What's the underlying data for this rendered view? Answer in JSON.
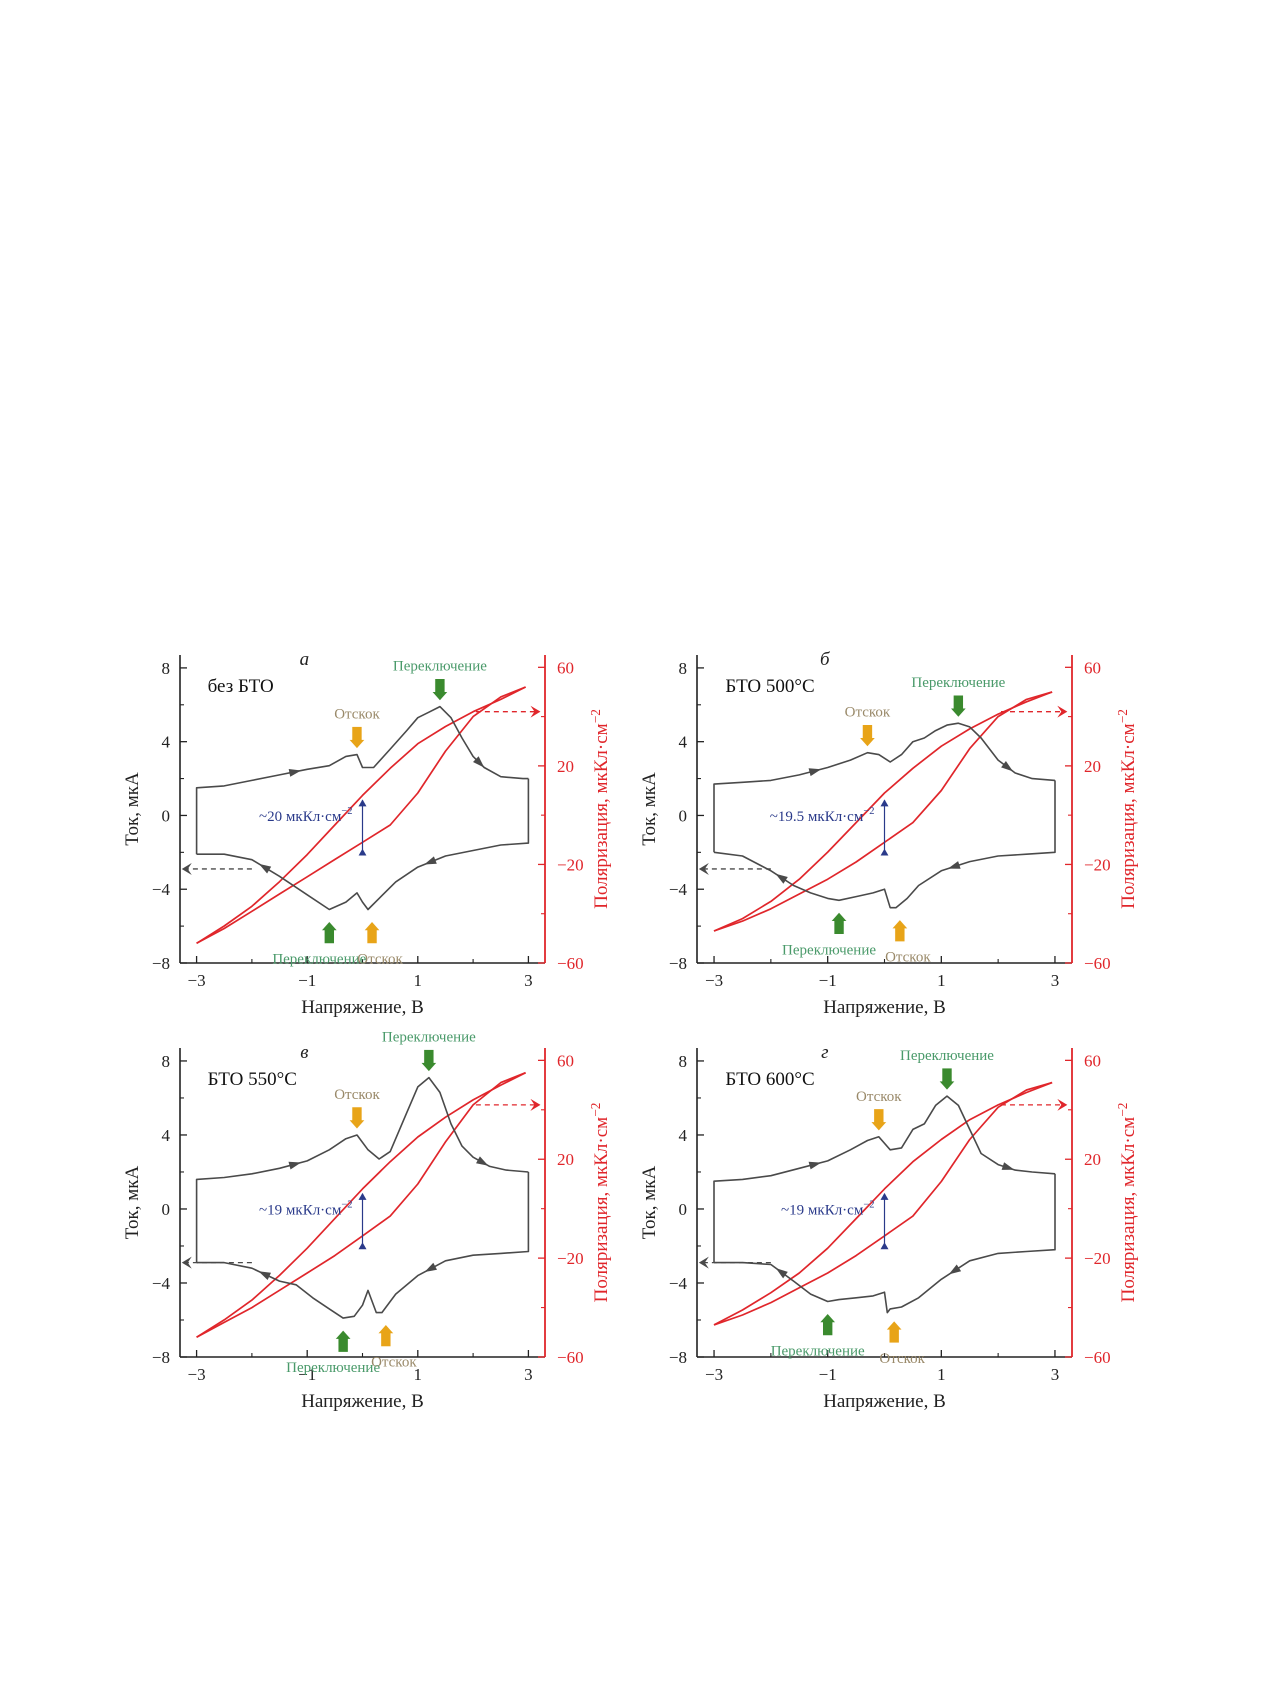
{
  "colors": {
    "current": "#4a4a4a",
    "polarization": "#e0262b",
    "switching": "#3a8a2e",
    "switching_text": "#4a9a6a",
    "bounce": "#e8a418",
    "bounce_text": "#9a8a6a",
    "delta": "#2a3a8a"
  },
  "chart_data": [
    {
      "type": "line",
      "panel_letter": "а",
      "sample_label": "без БТО",
      "xlabel": "Напряжение, В",
      "ylabel_left": "Ток, мкА",
      "ylabel_right": "Поляризация, мкКл·см",
      "ylabel_right_exp": "−2",
      "xlim": [
        -3.3,
        3.3
      ],
      "ylim_left": [
        -8,
        8.7
      ],
      "ylim_right": [
        -60,
        65
      ],
      "x_ticks": [
        "−3",
        "−1",
        "1",
        "3"
      ],
      "y_ticks_left": [
        "8",
        "4",
        "0",
        "−4",
        "−8"
      ],
      "y_ticks_right": [
        "60",
        "20",
        "−20",
        "−60"
      ],
      "delta_label": "~20 мкКл·см",
      "delta_exp": "−2",
      "switching_label_top": "Переключение",
      "bounce_label_top": "Отскок",
      "switching_label_bottom": "Переключение",
      "bounce_label_bottom": "Отскок",
      "series": [
        {
          "name": "current_forward",
          "x": [
            -3.0,
            -3.0,
            -2.5,
            -2.0,
            -1.5,
            -1.0,
            -0.6,
            -0.3,
            -0.1,
            0.0,
            0.2,
            0.5,
            0.8,
            1.0,
            1.2,
            1.4,
            1.6,
            1.8,
            2.0,
            2.2,
            2.5,
            2.9,
            3.0
          ],
          "y": [
            -2.1,
            1.5,
            1.6,
            1.9,
            2.2,
            2.5,
            2.7,
            3.2,
            3.3,
            2.6,
            2.6,
            3.6,
            4.6,
            5.3,
            5.6,
            5.9,
            5.3,
            4.2,
            3.2,
            2.6,
            2.1,
            2.0,
            2.0
          ]
        },
        {
          "name": "current_reverse",
          "x": [
            3.0,
            3.0,
            2.5,
            2.0,
            1.5,
            1.0,
            0.6,
            0.3,
            0.1,
            0.0,
            -0.1,
            -0.3,
            -0.6,
            -1.0,
            -1.5,
            -2.0,
            -2.5,
            -3.0
          ],
          "y": [
            2.0,
            -1.5,
            -1.6,
            -1.9,
            -2.2,
            -2.8,
            -3.6,
            -4.5,
            -5.1,
            -4.7,
            -4.2,
            -4.7,
            -5.1,
            -4.3,
            -3.3,
            -2.4,
            -2.1,
            -2.1
          ]
        },
        {
          "name": "polarization_upper",
          "x": [
            -3.0,
            -2.5,
            -2.0,
            -1.5,
            -1.0,
            -0.5,
            0.0,
            0.5,
            1.0,
            1.5,
            2.0,
            2.5,
            2.95
          ],
          "y": [
            -52,
            -45,
            -37,
            -27,
            -16,
            -4,
            8,
            19,
            29,
            36,
            42,
            47,
            52
          ]
        },
        {
          "name": "polarization_lower",
          "x": [
            2.95,
            2.5,
            2.0,
            1.5,
            1.0,
            0.5,
            0.0,
            -0.5,
            -1.0,
            -1.5,
            -2.0,
            -2.5,
            -3.0
          ],
          "y": [
            52,
            48,
            40,
            26,
            9,
            -4,
            -11,
            -18,
            -25,
            -32,
            -39,
            -46,
            -52
          ]
        }
      ]
    },
    {
      "type": "line",
      "panel_letter": "б",
      "sample_label": "БТО 500°C",
      "xlabel": "Напряжение, В",
      "ylabel_left": "Ток, мкА",
      "ylabel_right": "Поляризация, мкКл·см",
      "ylabel_right_exp": "−2",
      "xlim": [
        -3.3,
        3.3
      ],
      "ylim_left": [
        -8,
        8.7
      ],
      "ylim_right": [
        -60,
        65
      ],
      "x_ticks": [
        "−3",
        "−1",
        "1",
        "3"
      ],
      "y_ticks_left": [
        "8",
        "4",
        "0",
        "−4",
        "−8"
      ],
      "y_ticks_right": [
        "60",
        "20",
        "−20",
        "−60"
      ],
      "delta_label": "~19.5 мкКл·см",
      "delta_exp": "−2",
      "switching_label_top": "Переключение",
      "bounce_label_top": "Отскок",
      "switching_label_bottom": "Переключение",
      "bounce_label_bottom": "Отскок",
      "series": [
        {
          "name": "current_forward",
          "x": [
            -3.0,
            -3.0,
            -2.5,
            -2.0,
            -1.5,
            -1.0,
            -0.6,
            -0.3,
            -0.1,
            0.1,
            0.3,
            0.5,
            0.7,
            0.9,
            1.1,
            1.3,
            1.5,
            1.7,
            2.0,
            2.3,
            2.6,
            3.0,
            3.0
          ],
          "y": [
            -2.0,
            1.7,
            1.8,
            1.9,
            2.2,
            2.6,
            3.0,
            3.4,
            3.3,
            2.9,
            3.3,
            4.0,
            4.2,
            4.6,
            4.9,
            5.0,
            4.8,
            4.2,
            3.0,
            2.3,
            2.0,
            1.9,
            1.9
          ]
        },
        {
          "name": "current_reverse",
          "x": [
            3.0,
            3.0,
            2.5,
            2.0,
            1.5,
            1.0,
            0.6,
            0.4,
            0.2,
            0.1,
            0.0,
            -0.2,
            -0.5,
            -0.8,
            -1.0,
            -1.3,
            -1.6,
            -2.0,
            -2.5,
            -3.0
          ],
          "y": [
            1.9,
            -2.0,
            -2.1,
            -2.2,
            -2.5,
            -3.0,
            -3.8,
            -4.5,
            -5.0,
            -5.0,
            -4.0,
            -4.2,
            -4.4,
            -4.6,
            -4.5,
            -4.2,
            -3.8,
            -3.0,
            -2.2,
            -2.0
          ]
        },
        {
          "name": "polarization_upper",
          "x": [
            -3.0,
            -2.5,
            -2.0,
            -1.5,
            -1.0,
            -0.5,
            0.0,
            0.5,
            1.0,
            1.5,
            2.0,
            2.5,
            2.95
          ],
          "y": [
            -47,
            -42,
            -35,
            -26,
            -15,
            -3,
            9,
            19,
            28,
            35,
            41,
            46,
            50
          ]
        },
        {
          "name": "polarization_lower",
          "x": [
            2.95,
            2.5,
            2.0,
            1.5,
            1.0,
            0.5,
            0.0,
            -0.5,
            -1.0,
            -1.5,
            -2.0,
            -2.5,
            -3.0
          ],
          "y": [
            50,
            47,
            40,
            27,
            10,
            -3,
            -11,
            -19,
            -26,
            -32,
            -38,
            -43,
            -47
          ]
        }
      ]
    },
    {
      "type": "line",
      "panel_letter": "в",
      "sample_label": "БТО 550°C",
      "xlabel": "Напряжение, В",
      "ylabel_left": "Ток, мкА",
      "ylabel_right": "Поляризация, мкКл·см",
      "ylabel_right_exp": "−2",
      "xlim": [
        -3.3,
        3.3
      ],
      "ylim_left": [
        -8,
        8.7
      ],
      "ylim_right": [
        -60,
        65
      ],
      "x_ticks": [
        "−3",
        "−1",
        "1",
        "3"
      ],
      "y_ticks_left": [
        "8",
        "4",
        "0",
        "−4",
        "−8"
      ],
      "y_ticks_right": [
        "60",
        "20",
        "−20",
        "−60"
      ],
      "delta_label": "~19 мкКл·см",
      "delta_exp": "−2",
      "switching_label_top": "Переключение",
      "bounce_label_top": "Отскок",
      "switching_label_bottom": "Переключение",
      "bounce_label_bottom": "Отскок",
      "series": [
        {
          "name": "current_forward",
          "x": [
            -3.0,
            -3.0,
            -2.5,
            -2.0,
            -1.5,
            -1.0,
            -0.6,
            -0.3,
            -0.1,
            0.1,
            0.3,
            0.5,
            0.8,
            1.0,
            1.2,
            1.4,
            1.6,
            1.8,
            2.0,
            2.3,
            2.6,
            3.0,
            3.0
          ],
          "y": [
            -2.9,
            1.6,
            1.7,
            1.9,
            2.2,
            2.6,
            3.2,
            3.8,
            4.0,
            3.2,
            2.7,
            3.1,
            5.2,
            6.6,
            7.1,
            6.3,
            4.6,
            3.4,
            2.8,
            2.3,
            2.1,
            2.0,
            2.0
          ]
        },
        {
          "name": "current_reverse",
          "x": [
            3.0,
            3.0,
            2.5,
            2.0,
            1.5,
            1.0,
            0.6,
            0.35,
            0.25,
            0.1,
            0.0,
            -0.15,
            -0.35,
            -0.6,
            -0.9,
            -1.2,
            -1.5,
            -2.0,
            -2.5,
            -3.0
          ],
          "y": [
            2.0,
            -2.3,
            -2.4,
            -2.5,
            -2.8,
            -3.6,
            -4.6,
            -5.6,
            -5.6,
            -4.4,
            -5.2,
            -5.8,
            -5.9,
            -5.4,
            -4.8,
            -4.1,
            -3.9,
            -3.2,
            -2.9,
            -2.9
          ]
        },
        {
          "name": "polarization_upper",
          "x": [
            -3.0,
            -2.5,
            -2.0,
            -1.5,
            -1.0,
            -0.5,
            0.0,
            0.5,
            1.0,
            1.5,
            2.0,
            2.5,
            2.95
          ],
          "y": [
            -52,
            -45,
            -37,
            -27,
            -16,
            -4,
            8,
            19,
            29,
            37,
            44,
            50,
            55
          ]
        },
        {
          "name": "polarization_lower",
          "x": [
            2.95,
            2.5,
            2.0,
            1.5,
            1.0,
            0.5,
            0.0,
            -0.5,
            -1.0,
            -1.5,
            -2.0,
            -2.5,
            -3.0
          ],
          "y": [
            55,
            51,
            42,
            27,
            10,
            -3,
            -11,
            -19,
            -26,
            -33,
            -40,
            -46,
            -52
          ]
        }
      ]
    },
    {
      "type": "line",
      "panel_letter": "г",
      "sample_label": "БТО 600°C",
      "xlabel": "Напряжение, В",
      "ylabel_left": "Ток, мкА",
      "ylabel_right": "Поляризация, мкКл·см",
      "ylabel_right_exp": "−2",
      "xlim": [
        -3.3,
        3.3
      ],
      "ylim_left": [
        -8,
        8.7
      ],
      "ylim_right": [
        -60,
        65
      ],
      "x_ticks": [
        "−3",
        "−1",
        "1",
        "3"
      ],
      "y_ticks_left": [
        "8",
        "4",
        "0",
        "−4",
        "−8"
      ],
      "y_ticks_right": [
        "60",
        "20",
        "−20",
        "−60"
      ],
      "delta_label": "~19 мкКл·см",
      "delta_exp": "−2",
      "switching_label_top": "Переключение",
      "bounce_label_top": "Отскок",
      "switching_label_bottom": "Переключение",
      "bounce_label_bottom": "Отскок",
      "series": [
        {
          "name": "current_forward",
          "x": [
            -3.0,
            -3.0,
            -2.5,
            -2.0,
            -1.5,
            -1.0,
            -0.6,
            -0.3,
            -0.1,
            0.1,
            0.3,
            0.5,
            0.7,
            0.9,
            1.1,
            1.3,
            1.5,
            1.7,
            2.0,
            2.3,
            2.6,
            3.0,
            3.0
          ],
          "y": [
            -2.9,
            1.5,
            1.6,
            1.8,
            2.2,
            2.6,
            3.2,
            3.7,
            3.9,
            3.2,
            3.3,
            4.3,
            4.6,
            5.6,
            6.1,
            5.6,
            4.3,
            3.0,
            2.4,
            2.1,
            2.0,
            1.9,
            1.9
          ]
        },
        {
          "name": "current_reverse",
          "x": [
            3.0,
            3.0,
            2.5,
            2.0,
            1.5,
            1.0,
            0.6,
            0.3,
            0.1,
            0.05,
            0.0,
            -0.2,
            -0.5,
            -0.8,
            -1.0,
            -1.3,
            -1.6,
            -2.0,
            -2.5,
            -3.0
          ],
          "y": [
            1.9,
            -2.2,
            -2.3,
            -2.4,
            -2.8,
            -3.8,
            -4.8,
            -5.3,
            -5.4,
            -5.6,
            -4.5,
            -4.7,
            -4.8,
            -4.9,
            -5.0,
            -4.6,
            -3.9,
            -3.0,
            -2.9,
            -2.9
          ]
        },
        {
          "name": "polarization_upper",
          "x": [
            -3.0,
            -2.5,
            -2.0,
            -1.5,
            -1.0,
            -0.5,
            0.0,
            0.5,
            1.0,
            1.5,
            2.0,
            2.5,
            2.95
          ],
          "y": [
            -47,
            -41,
            -34,
            -26,
            -16,
            -4,
            8,
            19,
            28,
            36,
            42,
            47,
            51
          ]
        },
        {
          "name": "polarization_lower",
          "x": [
            2.95,
            2.5,
            2.0,
            1.5,
            1.0,
            0.5,
            0.0,
            -0.5,
            -1.0,
            -1.5,
            -2.0,
            -2.5,
            -3.0
          ],
          "y": [
            51,
            48,
            41,
            28,
            11,
            -3,
            -11,
            -19,
            -26,
            -32,
            -38,
            -43,
            -47
          ]
        }
      ]
    }
  ]
}
